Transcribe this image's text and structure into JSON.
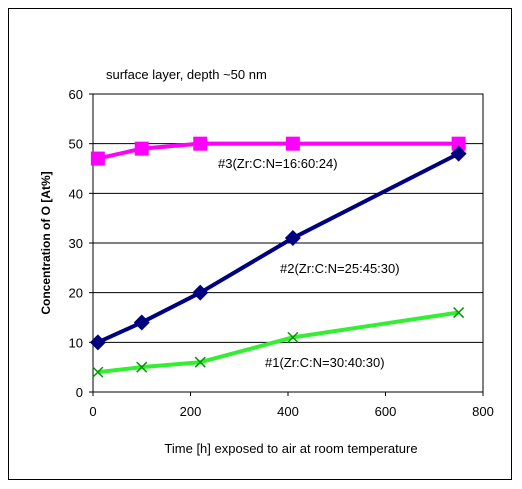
{
  "chart_data": {
    "type": "line",
    "title": "surface layer, depth ~50 nm",
    "xlabel": "Time [h] exposed to air at room temperature",
    "ylabel": "Concentration of O [At%]",
    "xlim": [
      0,
      800
    ],
    "ylim": [
      0,
      60
    ],
    "xticks": [
      0,
      200,
      400,
      600,
      800
    ],
    "yticks": [
      0,
      10,
      20,
      30,
      40,
      50,
      60
    ],
    "grid": "horizontal",
    "series": [
      {
        "name": "#3(Zr:C:N=16:60:24)",
        "color": "#ff00ff",
        "marker": "square",
        "x": [
          10,
          100,
          220,
          410,
          750
        ],
        "y": [
          47,
          49,
          50,
          50,
          50
        ]
      },
      {
        "name": "#2(Zr:C:N=25:45:30)",
        "color": "#000080",
        "marker": "diamond",
        "x": [
          10,
          100,
          220,
          410,
          750
        ],
        "y": [
          10,
          14,
          20,
          31,
          48
        ]
      },
      {
        "name": "#1(Zr:C:N=30:40:30)",
        "color": "#33ee33",
        "marker": "x",
        "x": [
          10,
          100,
          220,
          410,
          750
        ],
        "y": [
          4,
          5,
          6,
          11,
          16
        ]
      }
    ]
  }
}
